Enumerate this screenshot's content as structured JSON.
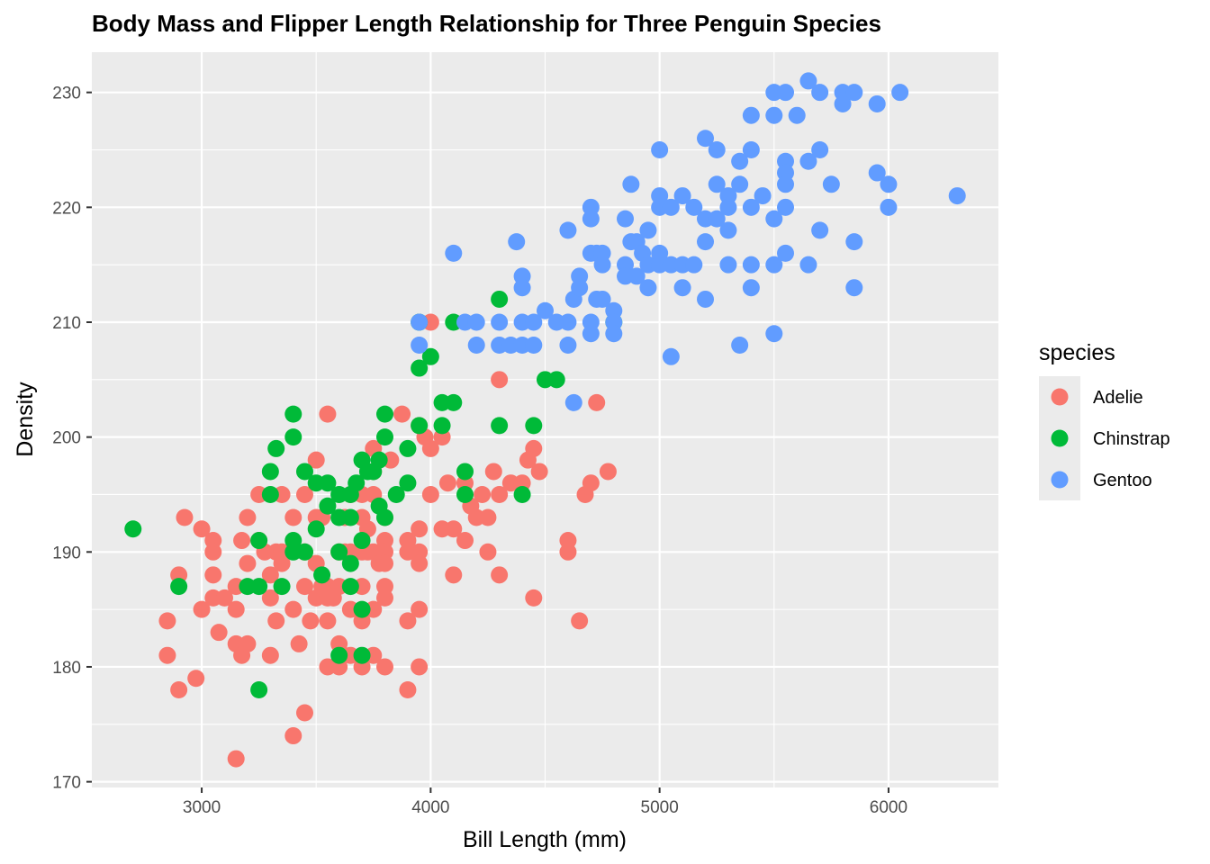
{
  "chart_data": {
    "type": "scatter",
    "title": "Body Mass and Flipper Length Relationship for Three Penguin Species",
    "xlabel": "Bill Length (mm)",
    "ylabel": "Density",
    "xlim": [
      2520,
      6480
    ],
    "ylim": [
      169.5,
      233.5
    ],
    "x_ticks": [
      3000,
      4000,
      5000,
      6000
    ],
    "y_ticks": [
      170,
      180,
      190,
      200,
      210,
      220,
      230
    ],
    "grid": true,
    "legend": {
      "title": "species",
      "position": "right"
    },
    "series": [
      {
        "name": "Adelie",
        "color": "#F8766D",
        "points": [
          [
            2850,
            184
          ],
          [
            2850,
            181
          ],
          [
            2900,
            188
          ],
          [
            2900,
            178
          ],
          [
            2925,
            193
          ],
          [
            2975,
            179
          ],
          [
            3000,
            192
          ],
          [
            3000,
            185
          ],
          [
            3050,
            191
          ],
          [
            3050,
            190
          ],
          [
            3050,
            188
          ],
          [
            3050,
            186
          ],
          [
            3075,
            183
          ],
          [
            3100,
            186
          ],
          [
            3150,
            187
          ],
          [
            3150,
            185
          ],
          [
            3150,
            182
          ],
          [
            3150,
            172
          ],
          [
            3175,
            191
          ],
          [
            3175,
            181
          ],
          [
            3200,
            193
          ],
          [
            3200,
            189
          ],
          [
            3200,
            182
          ],
          [
            3250,
            195
          ],
          [
            3250,
            191
          ],
          [
            3275,
            190
          ],
          [
            3300,
            188
          ],
          [
            3300,
            186
          ],
          [
            3300,
            181
          ],
          [
            3325,
            190
          ],
          [
            3325,
            184
          ],
          [
            3350,
            195
          ],
          [
            3350,
            190
          ],
          [
            3350,
            189
          ],
          [
            3400,
            193
          ],
          [
            3400,
            185
          ],
          [
            3400,
            174
          ],
          [
            3425,
            182
          ],
          [
            3450,
            195
          ],
          [
            3450,
            190
          ],
          [
            3450,
            187
          ],
          [
            3450,
            176
          ],
          [
            3475,
            184
          ],
          [
            3500,
            198
          ],
          [
            3500,
            193
          ],
          [
            3500,
            189
          ],
          [
            3500,
            186
          ],
          [
            3525,
            193
          ],
          [
            3525,
            187
          ],
          [
            3550,
            202
          ],
          [
            3550,
            187
          ],
          [
            3550,
            186
          ],
          [
            3550,
            184
          ],
          [
            3550,
            180
          ],
          [
            3575,
            186
          ],
          [
            3600,
            190
          ],
          [
            3600,
            187
          ],
          [
            3600,
            182
          ],
          [
            3600,
            180
          ],
          [
            3625,
            193
          ],
          [
            3625,
            190
          ],
          [
            3650,
            195
          ],
          [
            3650,
            190
          ],
          [
            3650,
            185
          ],
          [
            3650,
            181
          ],
          [
            3700,
            195
          ],
          [
            3700,
            193
          ],
          [
            3700,
            190
          ],
          [
            3700,
            187
          ],
          [
            3700,
            184
          ],
          [
            3700,
            180
          ],
          [
            3725,
            192
          ],
          [
            3725,
            190
          ],
          [
            3750,
            199
          ],
          [
            3750,
            197
          ],
          [
            3750,
            195
          ],
          [
            3750,
            190
          ],
          [
            3750,
            185
          ],
          [
            3750,
            181
          ],
          [
            3775,
            189
          ],
          [
            3800,
            193
          ],
          [
            3800,
            191
          ],
          [
            3800,
            190
          ],
          [
            3800,
            189
          ],
          [
            3800,
            187
          ],
          [
            3800,
            186
          ],
          [
            3800,
            180
          ],
          [
            3825,
            198
          ],
          [
            3875,
            202
          ],
          [
            3900,
            191
          ],
          [
            3900,
            190
          ],
          [
            3900,
            184
          ],
          [
            3900,
            178
          ],
          [
            3950,
            201
          ],
          [
            3950,
            192
          ],
          [
            3950,
            190
          ],
          [
            3950,
            189
          ],
          [
            3950,
            185
          ],
          [
            3950,
            180
          ],
          [
            3975,
            200
          ],
          [
            4000,
            210
          ],
          [
            4000,
            199
          ],
          [
            4000,
            195
          ],
          [
            4050,
            200
          ],
          [
            4050,
            192
          ],
          [
            4075,
            196
          ],
          [
            4100,
            192
          ],
          [
            4100,
            188
          ],
          [
            4150,
            196
          ],
          [
            4150,
            191
          ],
          [
            4175,
            194
          ],
          [
            4200,
            193
          ],
          [
            4225,
            195
          ],
          [
            4250,
            193
          ],
          [
            4250,
            190
          ],
          [
            4275,
            197
          ],
          [
            4300,
            205
          ],
          [
            4300,
            195
          ],
          [
            4300,
            188
          ],
          [
            4350,
            196
          ],
          [
            4400,
            196
          ],
          [
            4425,
            198
          ],
          [
            4450,
            199
          ],
          [
            4450,
            186
          ],
          [
            4475,
            197
          ],
          [
            4600,
            191
          ],
          [
            4600,
            190
          ],
          [
            4650,
            184
          ],
          [
            4675,
            195
          ],
          [
            4700,
            196
          ],
          [
            4725,
            203
          ],
          [
            4775,
            197
          ]
        ]
      },
      {
        "name": "Chinstrap",
        "color": "#00BA38",
        "points": [
          [
            2700,
            192
          ],
          [
            2900,
            187
          ],
          [
            3200,
            187
          ],
          [
            3250,
            191
          ],
          [
            3250,
            187
          ],
          [
            3250,
            178
          ],
          [
            3300,
            197
          ],
          [
            3300,
            195
          ],
          [
            3325,
            199
          ],
          [
            3350,
            187
          ],
          [
            3400,
            202
          ],
          [
            3400,
            200
          ],
          [
            3400,
            191
          ],
          [
            3400,
            190
          ],
          [
            3450,
            197
          ],
          [
            3450,
            190
          ],
          [
            3500,
            196
          ],
          [
            3500,
            192
          ],
          [
            3525,
            188
          ],
          [
            3550,
            196
          ],
          [
            3550,
            194
          ],
          [
            3600,
            195
          ],
          [
            3600,
            193
          ],
          [
            3600,
            190
          ],
          [
            3600,
            181
          ],
          [
            3650,
            195
          ],
          [
            3650,
            193
          ],
          [
            3650,
            189
          ],
          [
            3650,
            187
          ],
          [
            3675,
            196
          ],
          [
            3700,
            198
          ],
          [
            3700,
            191
          ],
          [
            3700,
            185
          ],
          [
            3700,
            181
          ],
          [
            3725,
            197
          ],
          [
            3750,
            197
          ],
          [
            3775,
            198
          ],
          [
            3775,
            194
          ],
          [
            3800,
            202
          ],
          [
            3800,
            200
          ],
          [
            3800,
            193
          ],
          [
            3850,
            195
          ],
          [
            3900,
            199
          ],
          [
            3900,
            196
          ],
          [
            3950,
            210
          ],
          [
            3950,
            206
          ],
          [
            3950,
            201
          ],
          [
            4000,
            207
          ],
          [
            4050,
            203
          ],
          [
            4050,
            201
          ],
          [
            4100,
            210
          ],
          [
            4100,
            203
          ],
          [
            4150,
            197
          ],
          [
            4150,
            195
          ],
          [
            4300,
            212
          ],
          [
            4300,
            201
          ],
          [
            4400,
            195
          ],
          [
            4450,
            201
          ],
          [
            4500,
            205
          ],
          [
            4550,
            205
          ],
          [
            4800,
            210
          ]
        ]
      },
      {
        "name": "Gentoo",
        "color": "#619CFF",
        "points": [
          [
            3950,
            210
          ],
          [
            3950,
            208
          ],
          [
            4100,
            216
          ],
          [
            4150,
            210
          ],
          [
            4200,
            210
          ],
          [
            4200,
            208
          ],
          [
            4300,
            210
          ],
          [
            4300,
            208
          ],
          [
            4350,
            208
          ],
          [
            4375,
            217
          ],
          [
            4400,
            214
          ],
          [
            4400,
            213
          ],
          [
            4400,
            210
          ],
          [
            4400,
            208
          ],
          [
            4450,
            210
          ],
          [
            4450,
            208
          ],
          [
            4500,
            211
          ],
          [
            4550,
            210
          ],
          [
            4600,
            218
          ],
          [
            4600,
            210
          ],
          [
            4600,
            208
          ],
          [
            4625,
            212
          ],
          [
            4625,
            203
          ],
          [
            4650,
            214
          ],
          [
            4650,
            213
          ],
          [
            4700,
            220
          ],
          [
            4700,
            219
          ],
          [
            4700,
            216
          ],
          [
            4700,
            210
          ],
          [
            4700,
            209
          ],
          [
            4725,
            216
          ],
          [
            4725,
            212
          ],
          [
            4750,
            216
          ],
          [
            4750,
            215
          ],
          [
            4750,
            212
          ],
          [
            4800,
            211
          ],
          [
            4800,
            210
          ],
          [
            4800,
            209
          ],
          [
            4850,
            219
          ],
          [
            4850,
            215
          ],
          [
            4850,
            214
          ],
          [
            4875,
            222
          ],
          [
            4875,
            217
          ],
          [
            4900,
            217
          ],
          [
            4900,
            214
          ],
          [
            4925,
            216
          ],
          [
            4950,
            218
          ],
          [
            4950,
            215
          ],
          [
            4950,
            213
          ],
          [
            5000,
            225
          ],
          [
            5000,
            221
          ],
          [
            5000,
            220
          ],
          [
            5000,
            216
          ],
          [
            5000,
            215
          ],
          [
            5050,
            220
          ],
          [
            5050,
            215
          ],
          [
            5050,
            207
          ],
          [
            5100,
            221
          ],
          [
            5100,
            215
          ],
          [
            5100,
            213
          ],
          [
            5150,
            220
          ],
          [
            5150,
            215
          ],
          [
            5200,
            226
          ],
          [
            5200,
            219
          ],
          [
            5200,
            217
          ],
          [
            5200,
            212
          ],
          [
            5250,
            225
          ],
          [
            5250,
            222
          ],
          [
            5250,
            219
          ],
          [
            5300,
            221
          ],
          [
            5300,
            220
          ],
          [
            5300,
            218
          ],
          [
            5300,
            215
          ],
          [
            5350,
            224
          ],
          [
            5350,
            222
          ],
          [
            5350,
            208
          ],
          [
            5400,
            228
          ],
          [
            5400,
            225
          ],
          [
            5400,
            220
          ],
          [
            5400,
            215
          ],
          [
            5400,
            213
          ],
          [
            5450,
            221
          ],
          [
            5500,
            230
          ],
          [
            5500,
            228
          ],
          [
            5500,
            219
          ],
          [
            5500,
            215
          ],
          [
            5500,
            209
          ],
          [
            5550,
            230
          ],
          [
            5550,
            224
          ],
          [
            5550,
            223
          ],
          [
            5550,
            222
          ],
          [
            5550,
            220
          ],
          [
            5550,
            216
          ],
          [
            5600,
            228
          ],
          [
            5650,
            231
          ],
          [
            5650,
            224
          ],
          [
            5650,
            215
          ],
          [
            5700,
            230
          ],
          [
            5700,
            225
          ],
          [
            5700,
            218
          ],
          [
            5750,
            222
          ],
          [
            5800,
            230
          ],
          [
            5800,
            229
          ],
          [
            5850,
            230
          ],
          [
            5850,
            217
          ],
          [
            5850,
            213
          ],
          [
            5950,
            229
          ],
          [
            5950,
            223
          ],
          [
            6000,
            222
          ],
          [
            6000,
            220
          ],
          [
            6050,
            230
          ],
          [
            6300,
            221
          ]
        ]
      }
    ]
  }
}
